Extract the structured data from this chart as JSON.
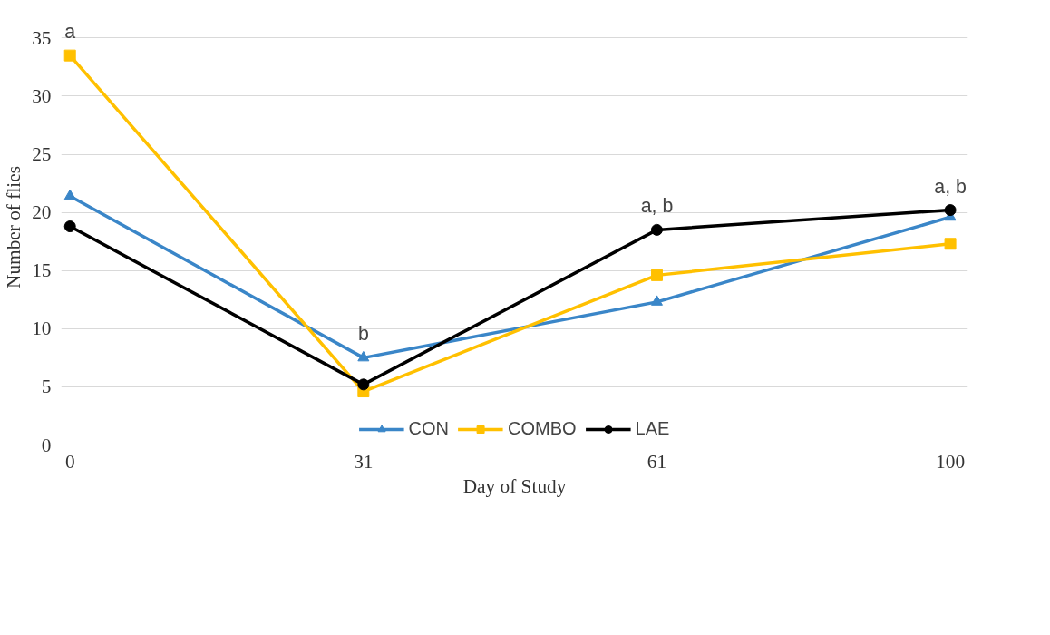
{
  "chart_data": {
    "type": "line",
    "xlabel": "Day of Study",
    "ylabel": "Number of flies",
    "categories": [
      "0",
      "31",
      "61",
      "100"
    ],
    "series": [
      {
        "name": "CON",
        "color": "#3a86c8",
        "marker": "triangle",
        "values": [
          21.4,
          7.5,
          12.3,
          19.6
        ]
      },
      {
        "name": "COMBO",
        "color": "#ffc000",
        "marker": "square",
        "values": [
          33.5,
          4.6,
          14.6,
          17.3
        ]
      },
      {
        "name": "LAE",
        "color": "#000000",
        "marker": "circle",
        "values": [
          18.8,
          5.2,
          18.5,
          20.2
        ]
      }
    ],
    "ylim": [
      0,
      35
    ],
    "yticks": [
      0,
      5,
      10,
      15,
      20,
      25,
      30,
      35
    ],
    "grid": "y",
    "legend": "bottom",
    "line_style": "solid",
    "annotations": [
      {
        "text": "a",
        "x": "0",
        "y": 33.5
      },
      {
        "text": "b",
        "x": "31",
        "y": 7.5
      },
      {
        "text": "a, b",
        "x": "61",
        "y": 18.5
      },
      {
        "text": "a, b",
        "x": "100",
        "y": 20.2
      }
    ]
  }
}
